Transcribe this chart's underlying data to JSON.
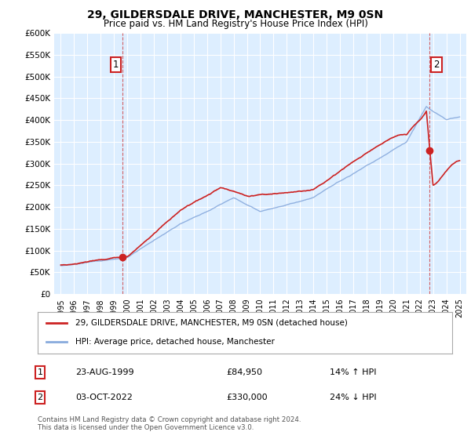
{
  "title1": "29, GILDERSDALE DRIVE, MANCHESTER, M9 0SN",
  "title2": "Price paid vs. HM Land Registry's House Price Index (HPI)",
  "ylim": [
    0,
    600000
  ],
  "yticks": [
    0,
    50000,
    100000,
    150000,
    200000,
    250000,
    300000,
    350000,
    400000,
    450000,
    500000,
    550000,
    600000
  ],
  "ytick_labels": [
    "£0",
    "£50K",
    "£100K",
    "£150K",
    "£200K",
    "£250K",
    "£300K",
    "£350K",
    "£400K",
    "£450K",
    "£500K",
    "£550K",
    "£600K"
  ],
  "xlim_start": 1994.5,
  "xlim_end": 2025.5,
  "xticks": [
    1995,
    1996,
    1997,
    1998,
    1999,
    2000,
    2001,
    2002,
    2003,
    2004,
    2005,
    2006,
    2007,
    2008,
    2009,
    2010,
    2011,
    2012,
    2013,
    2014,
    2015,
    2016,
    2017,
    2018,
    2019,
    2020,
    2021,
    2022,
    2023,
    2024,
    2025
  ],
  "background_color": "#ffffff",
  "plot_bg_color": "#ddeeff",
  "grid_color": "#ffffff",
  "red_line_color": "#cc2222",
  "blue_line_color": "#88aadd",
  "marker1_year": 1999.65,
  "marker1_value": 84950,
  "marker2_year": 2022.75,
  "marker2_value": 330000,
  "legend_line1": "29, GILDERSDALE DRIVE, MANCHESTER, M9 0SN (detached house)",
  "legend_line2": "HPI: Average price, detached house, Manchester",
  "note1_num": "1",
  "note1_date": "23-AUG-1999",
  "note1_price": "£84,950",
  "note1_hpi": "14% ↑ HPI",
  "note2_num": "2",
  "note2_date": "03-OCT-2022",
  "note2_price": "£330,000",
  "note2_hpi": "24% ↓ HPI",
  "footer": "Contains HM Land Registry data © Crown copyright and database right 2024.\nThis data is licensed under the Open Government Licence v3.0."
}
